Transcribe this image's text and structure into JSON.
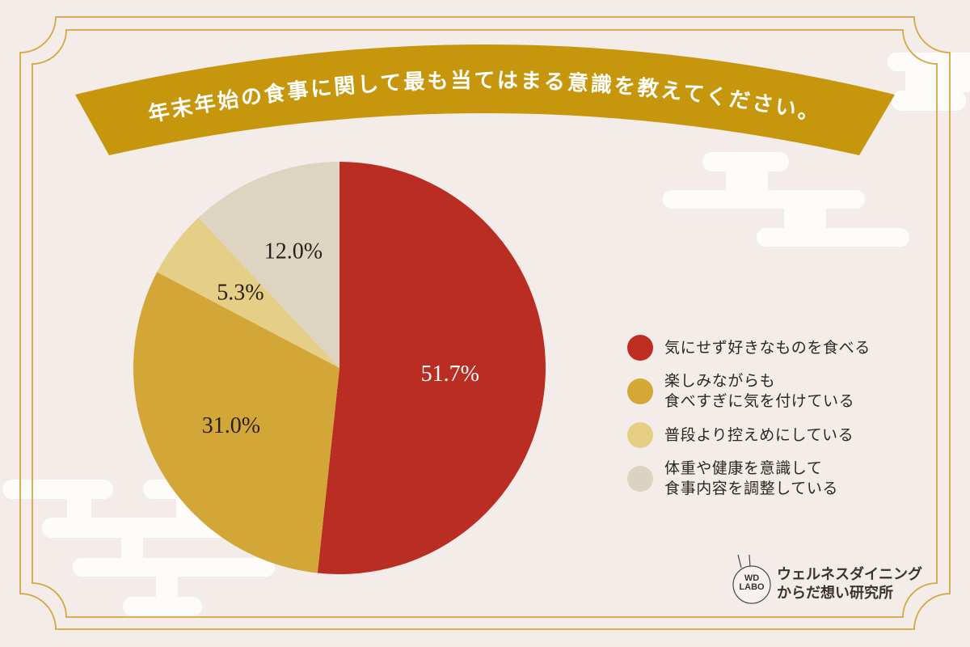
{
  "title": "年末年始の食事に関して最も当てはまる意識を教えてください。",
  "colors": {
    "background": "#F3ECE9",
    "banner": "#C6970C",
    "frame": "#D4A840",
    "cloud": "#FEFCFB",
    "text_dark": "#2E2620"
  },
  "chart_data": {
    "type": "pie",
    "title": "年末年始の食事に関して最も当てはまる意識を教えてください。",
    "categories": [
      "気にせず好きなものを食べる",
      "楽しみながらも食べすぎに気を付けている",
      "普段より控えめにしている",
      "体重や健康を意識して食事内容を調整している"
    ],
    "values": [
      51.7,
      31.0,
      5.3,
      12.0
    ],
    "labels": [
      "51.7%",
      "31.0%",
      "5.3%",
      "12.0%"
    ],
    "colors": [
      "#BA2D22",
      "#D2A737",
      "#E5CE86",
      "#DDD4C1"
    ],
    "label_colors": [
      "#FFFFFF",
      "#2A1F18",
      "#2A1F18",
      "#2A1F18"
    ],
    "label_radius": [
      137,
      152,
      154,
      155
    ],
    "start": "12 o'clock",
    "direction": "clockwise",
    "legend_position": "right",
    "units": "%"
  },
  "legend": {
    "items": [
      {
        "line1": "気にせず好きなものを食べる",
        "line2": "",
        "color": "#BD2D22"
      },
      {
        "line1": "楽しみながらも",
        "line2": "食べすぎに気を付けている",
        "color": "#D4A836"
      },
      {
        "line1": "普段より控えめにしている",
        "line2": "",
        "color": "#E6CF85"
      },
      {
        "line1": "体重や健康を意識して",
        "line2": "食事内容を調整している",
        "color": "#DAD3C4"
      }
    ]
  },
  "logo": {
    "badge_line1": "WD",
    "badge_line2": "LABO",
    "name_line1": "ウェルネスダイニング",
    "name_line2": "からだ想い研究所"
  }
}
